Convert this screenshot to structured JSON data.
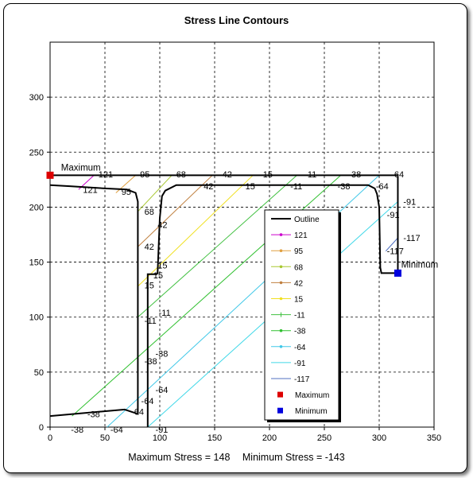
{
  "chart_data": {
    "type": "line",
    "title": "Stress Line Contours",
    "xlabel": "",
    "ylabel": "",
    "xlim": [
      0,
      350
    ],
    "ylim": [
      0,
      350
    ],
    "xticks": [
      0,
      50,
      100,
      150,
      200,
      250,
      300,
      350
    ],
    "yticks": [
      0,
      50,
      100,
      150,
      200,
      250,
      300
    ],
    "grid": true,
    "legend_position": "center-right",
    "footer": {
      "max_label": "Maximum Stress = 148",
      "min_label": "Minimum Stress = -143"
    },
    "outline": {
      "name": "Outline",
      "color": "#000000",
      "points": [
        [
          0,
          220
        ],
        [
          18,
          219
        ],
        [
          50,
          217
        ],
        [
          70,
          216
        ],
        [
          78,
          213
        ],
        [
          80,
          205
        ],
        [
          80,
          12
        ],
        [
          68,
          16
        ],
        [
          0,
          10
        ],
        null,
        [
          89,
          0
        ],
        [
          89,
          139
        ],
        [
          97,
          139
        ],
        [
          98,
          140
        ],
        [
          100,
          190
        ],
        [
          102,
          210
        ],
        [
          105,
          215
        ],
        [
          115,
          220
        ],
        [
          290,
          220
        ],
        [
          296,
          217
        ],
        [
          298,
          212
        ],
        [
          300,
          200
        ],
        [
          301,
          145
        ],
        [
          302,
          140
        ],
        [
          317,
          140
        ],
        [
          317,
          228
        ]
      ]
    },
    "top_line": [
      [
        0,
        229
      ],
      [
        317,
        229
      ]
    ],
    "series": [
      {
        "name": "121",
        "color": "#cc00cc",
        "segments": [
          [
            [
              26,
              216
            ],
            [
              40,
              229
            ]
          ]
        ],
        "labels": [
          {
            "text": "121",
            "x": 30,
            "y": 216
          },
          {
            "text": "121",
            "x": 44,
            "y": 230
          }
        ]
      },
      {
        "name": "95",
        "color": "#e0a040",
        "segments": [
          [
            [
              60,
              213
            ],
            [
              78,
              229
            ]
          ]
        ],
        "labels": [
          {
            "text": "95",
            "x": 65,
            "y": 214
          },
          {
            "text": "95",
            "x": 82,
            "y": 230
          }
        ]
      },
      {
        "name": "68",
        "color": "#a8c830",
        "segments": [
          [
            [
              80,
              196
            ],
            [
              111,
              229
            ]
          ]
        ],
        "labels": [
          {
            "text": "68",
            "x": 86,
            "y": 196
          },
          {
            "text": "68",
            "x": 115,
            "y": 230
          }
        ]
      },
      {
        "name": "42",
        "color": "#c08040",
        "segments": [
          [
            [
              80,
              164
            ],
            [
              148,
              229
            ]
          ]
        ],
        "labels": [
          {
            "text": "42",
            "x": 86,
            "y": 164
          },
          {
            "text": "42",
            "x": 98,
            "y": 184
          },
          {
            "text": "42",
            "x": 140,
            "y": 219
          },
          {
            "text": "42",
            "x": 157,
            "y": 230
          }
        ]
      },
      {
        "name": "15",
        "color": "#f0e020",
        "segments": [
          [
            [
              80,
              128
            ],
            [
              185,
              229
            ]
          ]
        ],
        "labels": [
          {
            "text": "15",
            "x": 86,
            "y": 129
          },
          {
            "text": "15",
            "x": 94,
            "y": 138
          },
          {
            "text": "15",
            "x": 98,
            "y": 147
          },
          {
            "text": "15",
            "x": 178,
            "y": 219
          },
          {
            "text": "15",
            "x": 194,
            "y": 230
          }
        ]
      },
      {
        "name": "-11",
        "color": "#40c040",
        "segments": [
          [
            [
              80,
              100
            ],
            [
              225,
              229
            ]
          ]
        ],
        "labels": [
          {
            "text": "-11",
            "x": 86,
            "y": 97
          },
          {
            "text": "-11",
            "x": 99,
            "y": 104
          },
          {
            "text": "-11",
            "x": 219,
            "y": 219
          },
          {
            "text": "-11",
            "x": 232,
            "y": 230
          }
        ]
      },
      {
        "name": "-38",
        "color": "#30c030",
        "segments": [
          [
            [
              20,
              10
            ],
            [
              265,
              229
            ]
          ]
        ],
        "labels": [
          {
            "text": "-38",
            "x": 34,
            "y": 12
          },
          {
            "text": "-38",
            "x": 19,
            "y": -2
          },
          {
            "text": "-38",
            "x": 86,
            "y": 60
          },
          {
            "text": "-38",
            "x": 96,
            "y": 67
          },
          {
            "text": "-38",
            "x": 262,
            "y": 219
          },
          {
            "text": "-38",
            "x": 272,
            "y": 230
          }
        ]
      },
      {
        "name": "-64",
        "color": "#40c8e8",
        "segments": [
          [
            [
              52,
              0
            ],
            [
              300,
              229
            ]
          ]
        ],
        "labels": [
          {
            "text": "-64",
            "x": 74,
            "y": 14
          },
          {
            "text": "-64",
            "x": 83,
            "y": 24
          },
          {
            "text": "-64",
            "x": 96,
            "y": 34
          },
          {
            "text": "-64",
            "x": 55,
            "y": -2
          },
          {
            "text": "-64",
            "x": 297,
            "y": 219
          },
          {
            "text": "-64",
            "x": 311,
            "y": 230
          }
        ]
      },
      {
        "name": "-91",
        "color": "#40d8e8",
        "segments": [
          [
            [
              89,
              0
            ],
            [
              317,
              205
            ]
          ]
        ],
        "labels": [
          {
            "text": "-91",
            "x": 96,
            "y": -2
          },
          {
            "text": "-91",
            "x": 307,
            "y": 193
          },
          {
            "text": "-91",
            "x": 322,
            "y": 205
          }
        ]
      },
      {
        "name": "-117",
        "color": "#5070c0",
        "segments": [
          [
            [
              306,
              160
            ],
            [
              317,
              172
            ]
          ]
        ],
        "labels": [
          {
            "text": "-117",
            "x": 307,
            "y": 160
          },
          {
            "text": "-117",
            "x": 322,
            "y": 172
          }
        ]
      }
    ],
    "markers": [
      {
        "name": "Maximum",
        "color": "#dd0000",
        "x": 0,
        "y": 229,
        "label": "Maximum",
        "label_x": 10,
        "label_y": 236
      },
      {
        "name": "Minimum",
        "color": "#0000dd",
        "x": 317,
        "y": 140,
        "label": "Minimum",
        "label_x": 320,
        "label_y": 148
      }
    ],
    "legend": [
      {
        "label": "Outline",
        "color": "#000000",
        "marker": "none",
        "bold": true
      },
      {
        "label": "121",
        "color": "#cc00cc",
        "marker": "dash"
      },
      {
        "label": "95",
        "color": "#e0a040",
        "marker": "circle"
      },
      {
        "label": "68",
        "color": "#a8c830",
        "marker": "triangle"
      },
      {
        "label": "42",
        "color": "#c08040",
        "marker": "x"
      },
      {
        "label": "15",
        "color": "#f0e020",
        "marker": "star"
      },
      {
        "label": "-11",
        "color": "#40c040",
        "marker": "plus"
      },
      {
        "label": "-38",
        "color": "#30c030",
        "marker": "dash"
      },
      {
        "label": "-64",
        "color": "#40c8e8",
        "marker": "dash"
      },
      {
        "label": "-91",
        "color": "#40d8e8",
        "marker": "none"
      },
      {
        "label": "-117",
        "color": "#5070c0",
        "marker": "none"
      },
      {
        "label": "Maximum",
        "color": "#dd0000",
        "marker": "square"
      },
      {
        "label": "Minimum",
        "color": "#0000dd",
        "marker": "square"
      }
    ]
  }
}
